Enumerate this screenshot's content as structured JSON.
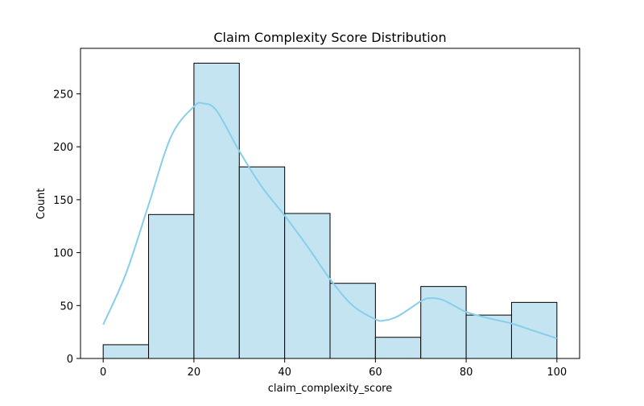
{
  "chart_data": {
    "type": "bar",
    "subtype": "histogram",
    "title": "Claim Complexity Score Distribution",
    "xlabel": "claim_complexity_score",
    "ylabel": "Count",
    "xlim": [
      -5,
      105
    ],
    "ylim": [
      0,
      293
    ],
    "xticks": [
      0,
      20,
      40,
      60,
      80,
      100
    ],
    "yticks": [
      0,
      50,
      100,
      150,
      200,
      250
    ],
    "bins": [
      {
        "start": 0,
        "end": 10,
        "count": 13
      },
      {
        "start": 10,
        "end": 20,
        "count": 136
      },
      {
        "start": 20,
        "end": 30,
        "count": 279
      },
      {
        "start": 30,
        "end": 40,
        "count": 181
      },
      {
        "start": 40,
        "end": 50,
        "count": 137
      },
      {
        "start": 50,
        "end": 60,
        "count": 71
      },
      {
        "start": 60,
        "end": 70,
        "count": 20
      },
      {
        "start": 70,
        "end": 80,
        "count": 68
      },
      {
        "start": 80,
        "end": 90,
        "count": 41
      },
      {
        "start": 90,
        "end": 100,
        "count": 53
      }
    ],
    "kde": {
      "x": [
        0,
        5,
        10,
        15,
        20,
        22,
        25,
        30,
        35,
        40,
        45,
        50,
        55,
        60,
        62,
        65,
        70,
        72,
        75,
        80,
        85,
        90,
        95,
        100
      ],
      "y": [
        32,
        80,
        145,
        210,
        238,
        241,
        234,
        196,
        162,
        135,
        106,
        75,
        50,
        37,
        36,
        40,
        54,
        57,
        55,
        44,
        38,
        33,
        26,
        19
      ]
    },
    "colors": {
      "bar_fill": "#c4e4f2",
      "bar_edge": "#000000",
      "kde_line": "#87ceeb"
    },
    "grid": false,
    "legend": "none"
  }
}
